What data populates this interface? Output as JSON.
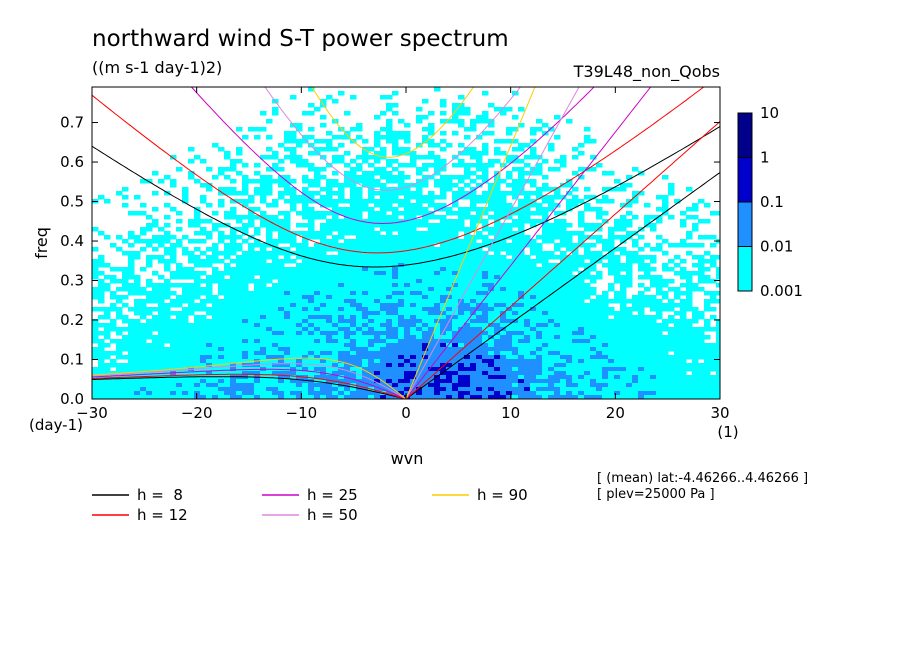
{
  "chart_data": {
    "type": "heatmap",
    "title": "northward wind S-T power spectrum",
    "subtitle": "((m s-1 day-1)2)",
    "experiment": "T39L48_non_Qobs",
    "xlabel": "wvn",
    "ylabel": "freq",
    "xunit": "(1)",
    "yunit": "(day-1)",
    "xlim": [
      -30,
      30
    ],
    "ylim": [
      0,
      0.79
    ],
    "xticks": [
      "-30",
      "-20",
      "-10",
      "0",
      "10",
      "20",
      "30"
    ],
    "yticks": [
      "0.0",
      "0.1",
      "0.2",
      "0.3",
      "0.4",
      "0.5",
      "0.6",
      "0.7"
    ],
    "colorbar": {
      "levels": [
        "0.001",
        "0.01",
        "0.1",
        "1",
        "10"
      ],
      "colors": [
        "#00ffff",
        "#1e90ff",
        "#0000cd",
        "#00008b"
      ]
    },
    "annotations": [
      "[ (mean) lat:-4.46266..4.46266 ]",
      "[ plev=25000 Pa ]"
    ],
    "dispersion_curves": [
      {
        "label": "h =  8",
        "h": 8,
        "color": "#000000"
      },
      {
        "label": "h = 12",
        "h": 12,
        "color": "#ff0000"
      },
      {
        "label": "h = 25",
        "h": 25,
        "color": "#cc00cc"
      },
      {
        "label": "h = 50",
        "h": 50,
        "color": "#dd88dd"
      },
      {
        "label": "h = 90",
        "h": 90,
        "color": "#ffcc00"
      }
    ]
  }
}
